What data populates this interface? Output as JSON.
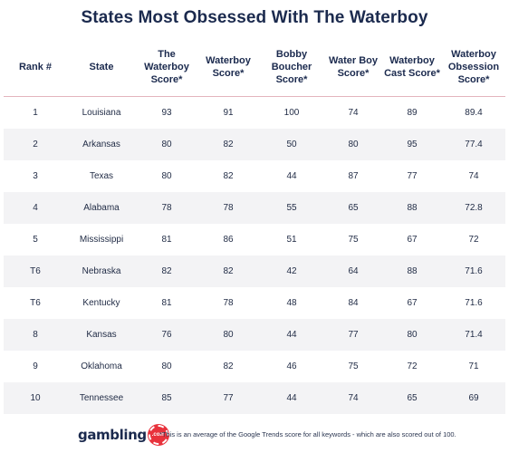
{
  "chart_data": {
    "type": "table",
    "title": "States Most Obsessed With The Waterboy",
    "columns": [
      "Rank #",
      "State",
      "The Waterboy Score*",
      "Waterboy Score*",
      "Bobby Boucher Score*",
      "Water Boy Score*",
      "Waterboy Cast Score*",
      "Waterboy Obsession Score*"
    ],
    "rows": [
      [
        "1",
        "Louisiana",
        "93",
        "91",
        "100",
        "74",
        "89",
        "89.4"
      ],
      [
        "2",
        "Arkansas",
        "80",
        "82",
        "50",
        "80",
        "95",
        "77.4"
      ],
      [
        "3",
        "Texas",
        "80",
        "82",
        "44",
        "87",
        "77",
        "74"
      ],
      [
        "4",
        "Alabama",
        "78",
        "78",
        "55",
        "65",
        "88",
        "72.8"
      ],
      [
        "5",
        "Mississippi",
        "81",
        "86",
        "51",
        "75",
        "67",
        "72"
      ],
      [
        "T6",
        "Nebraska",
        "82",
        "82",
        "42",
        "64",
        "88",
        "71.6"
      ],
      [
        "T6",
        "Kentucky",
        "81",
        "78",
        "48",
        "84",
        "67",
        "71.6"
      ],
      [
        "8",
        "Kansas",
        "76",
        "80",
        "44",
        "77",
        "80",
        "71.4"
      ],
      [
        "9",
        "Oklahoma",
        "80",
        "82",
        "46",
        "75",
        "72",
        "71"
      ],
      [
        "10",
        "Tennessee",
        "85",
        "77",
        "44",
        "74",
        "65",
        "69"
      ]
    ],
    "footnote": "*This is an average of the Google Trends score for all keywords - which are also scored out of 100."
  },
  "brand": {
    "logo_text": "gambling",
    "logo_chip": ".com",
    "accent_color": "#e8323c",
    "text_color": "#1b2a4e"
  }
}
